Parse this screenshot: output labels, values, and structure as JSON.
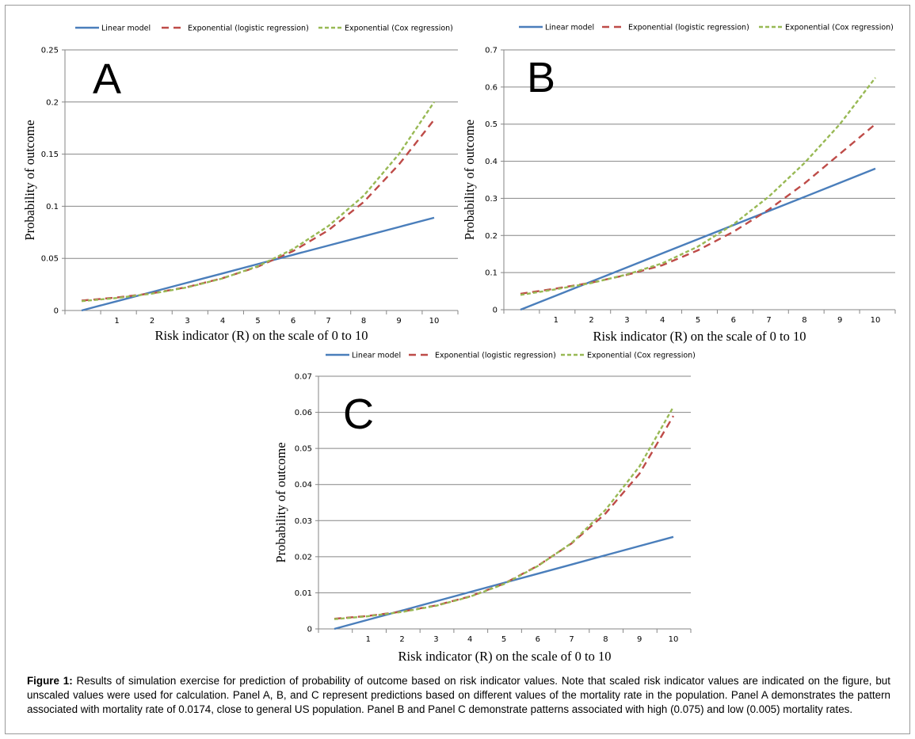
{
  "colors": {
    "linear": "#4a7ebb",
    "logistic": "#be4b48",
    "cox": "#98b954",
    "grid": "#868686",
    "axis": "#868686"
  },
  "caption": {
    "label": "Figure 1:",
    "text": "Results of simulation exercise for prediction of probability of outcome based on risk indicator values. Note that scaled risk indicator values are indicated on the figure, but unscaled values were used for calculation. Panel A, B, and C represent predictions based on different values of the mortality rate in the population. Panel A demonstrates the pattern associated with mortality rate of 0.0174, close to general US population. Panel B and Panel C demonstrate patterns associated with high (0.075) and low (0.005) mortality rates."
  },
  "chart_data": [
    {
      "type": "line",
      "panel": "A",
      "xlabel": "Risk indicator (R) on the scale of 0 to 10",
      "ylabel": "Probability of outcome",
      "x_ticks": [
        1,
        2,
        3,
        4,
        5,
        6,
        7,
        8,
        9,
        10
      ],
      "y_ticks": [
        "0",
        "0.05",
        "0.1",
        "0.15",
        "0.2",
        "0.25"
      ],
      "ylim": [
        0,
        0.25
      ],
      "legend_position": "top",
      "grid": true,
      "x": [
        0,
        1,
        2,
        3,
        4,
        5,
        6,
        7,
        8,
        9,
        10
      ],
      "series": [
        {
          "name": "Linear model",
          "key": "linear",
          "values": [
            0.0,
            0.0089,
            0.0178,
            0.0267,
            0.0356,
            0.0445,
            0.0534,
            0.0623,
            0.0712,
            0.0801,
            0.089
          ]
        },
        {
          "name": "Exponential (logistic regression)",
          "key": "logistic",
          "values": [
            0.0095,
            0.0125,
            0.0165,
            0.0225,
            0.031,
            0.042,
            0.057,
            0.077,
            0.104,
            0.14,
            0.183
          ]
        },
        {
          "name": "Exponential (Cox regression)",
          "key": "cox",
          "values": [
            0.009,
            0.012,
            0.0162,
            0.0222,
            0.0308,
            0.0425,
            0.059,
            0.081,
            0.11,
            0.15,
            0.2
          ]
        }
      ]
    },
    {
      "type": "line",
      "panel": "B",
      "xlabel": "Risk indicator (R) on the scale of 0 to 10",
      "ylabel": "Probability of outcome",
      "x_ticks": [
        1,
        2,
        3,
        4,
        5,
        6,
        7,
        8,
        9,
        10
      ],
      "y_ticks": [
        "0",
        "0.1",
        "0.2",
        "0.3",
        "0.4",
        "0.5",
        "0.6",
        "0.7"
      ],
      "ylim": [
        0,
        0.7
      ],
      "legend_position": "top",
      "grid": true,
      "x": [
        0,
        1,
        2,
        3,
        4,
        5,
        6,
        7,
        8,
        9,
        10
      ],
      "series": [
        {
          "name": "Linear model",
          "key": "linear",
          "values": [
            0.0,
            0.038,
            0.076,
            0.114,
            0.152,
            0.19,
            0.228,
            0.266,
            0.304,
            0.342,
            0.38
          ]
        },
        {
          "name": "Exponential (logistic regression)",
          "key": "logistic",
          "values": [
            0.043,
            0.057,
            0.073,
            0.094,
            0.12,
            0.16,
            0.21,
            0.27,
            0.34,
            0.42,
            0.5
          ]
        },
        {
          "name": "Exponential (Cox regression)",
          "key": "cox",
          "values": [
            0.04,
            0.055,
            0.072,
            0.095,
            0.125,
            0.17,
            0.23,
            0.305,
            0.395,
            0.5,
            0.625
          ]
        }
      ]
    },
    {
      "type": "line",
      "panel": "C",
      "xlabel": "Risk indicator (R) on the scale of 0 to 10",
      "ylabel": "Probability of outcome",
      "x_ticks": [
        1,
        2,
        3,
        4,
        5,
        6,
        7,
        8,
        9,
        10
      ],
      "y_ticks": [
        "0",
        "0.01",
        "0.02",
        "0.03",
        "0.04",
        "0.05",
        "0.06",
        "0.07"
      ],
      "ylim": [
        0,
        0.07
      ],
      "legend_position": "top",
      "grid": true,
      "x": [
        0,
        1,
        2,
        3,
        4,
        5,
        6,
        7,
        8,
        9,
        10
      ],
      "series": [
        {
          "name": "Linear model",
          "key": "linear",
          "values": [
            0.0,
            0.00255,
            0.0051,
            0.00765,
            0.0102,
            0.01275,
            0.0153,
            0.01785,
            0.0204,
            0.02295,
            0.0255
          ]
        },
        {
          "name": "Exponential (logistic regression)",
          "key": "logistic",
          "values": [
            0.0028,
            0.0036,
            0.0048,
            0.0065,
            0.009,
            0.0125,
            0.0175,
            0.0237,
            0.032,
            0.043,
            0.059
          ]
        },
        {
          "name": "Exponential (Cox regression)",
          "key": "cox",
          "values": [
            0.0027,
            0.0035,
            0.0047,
            0.0064,
            0.0089,
            0.0124,
            0.0174,
            0.0238,
            0.033,
            0.045,
            0.0615
          ]
        }
      ]
    }
  ]
}
